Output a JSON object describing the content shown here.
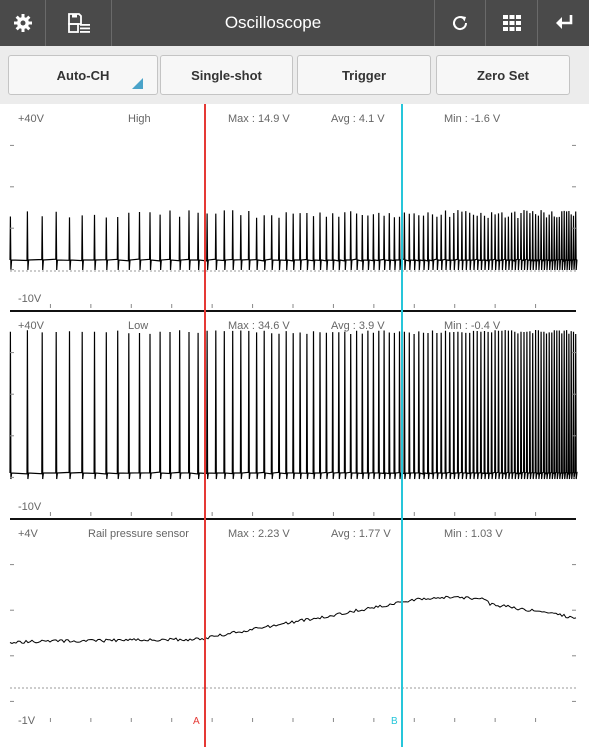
{
  "app": {
    "title": "Oscilloscope"
  },
  "toolbar": {
    "auto_ch": "Auto-CH",
    "single_shot": "Single-shot",
    "trigger": "Trigger",
    "zero_set": "Zero Set"
  },
  "icons": {
    "settings": "gear-icon",
    "save": "save-list-icon",
    "refresh": "refresh-icon",
    "grid": "grid-icon",
    "back": "return-icon"
  },
  "colors": {
    "cursor_a": "#e53935",
    "cursor_b": "#26c6da",
    "header": "#4a4a4a",
    "trace": "#000000",
    "toolbar_accent": "#4aa3c9"
  },
  "cursors": {
    "a_label": "A",
    "b_label": "B"
  },
  "channels": [
    {
      "name": "High",
      "top": "+40V",
      "bottom": "-10V",
      "max": "Max : 14.9 V",
      "avg": "Avg : 4.1 V",
      "min": "Min : -1.6 V"
    },
    {
      "name": "Low",
      "top": "+40V",
      "bottom": "-10V",
      "max": "Max : 34.6 V",
      "avg": "Avg : 3.9 V",
      "min": "Min : -0.4 V"
    },
    {
      "name": "Rail pressure sensor",
      "top": "+4V",
      "bottom": "-1V",
      "max": "Max : 2.23 V",
      "avg": "Avg : 1.77 V",
      "min": "Min : 1.03 V"
    }
  ]
}
